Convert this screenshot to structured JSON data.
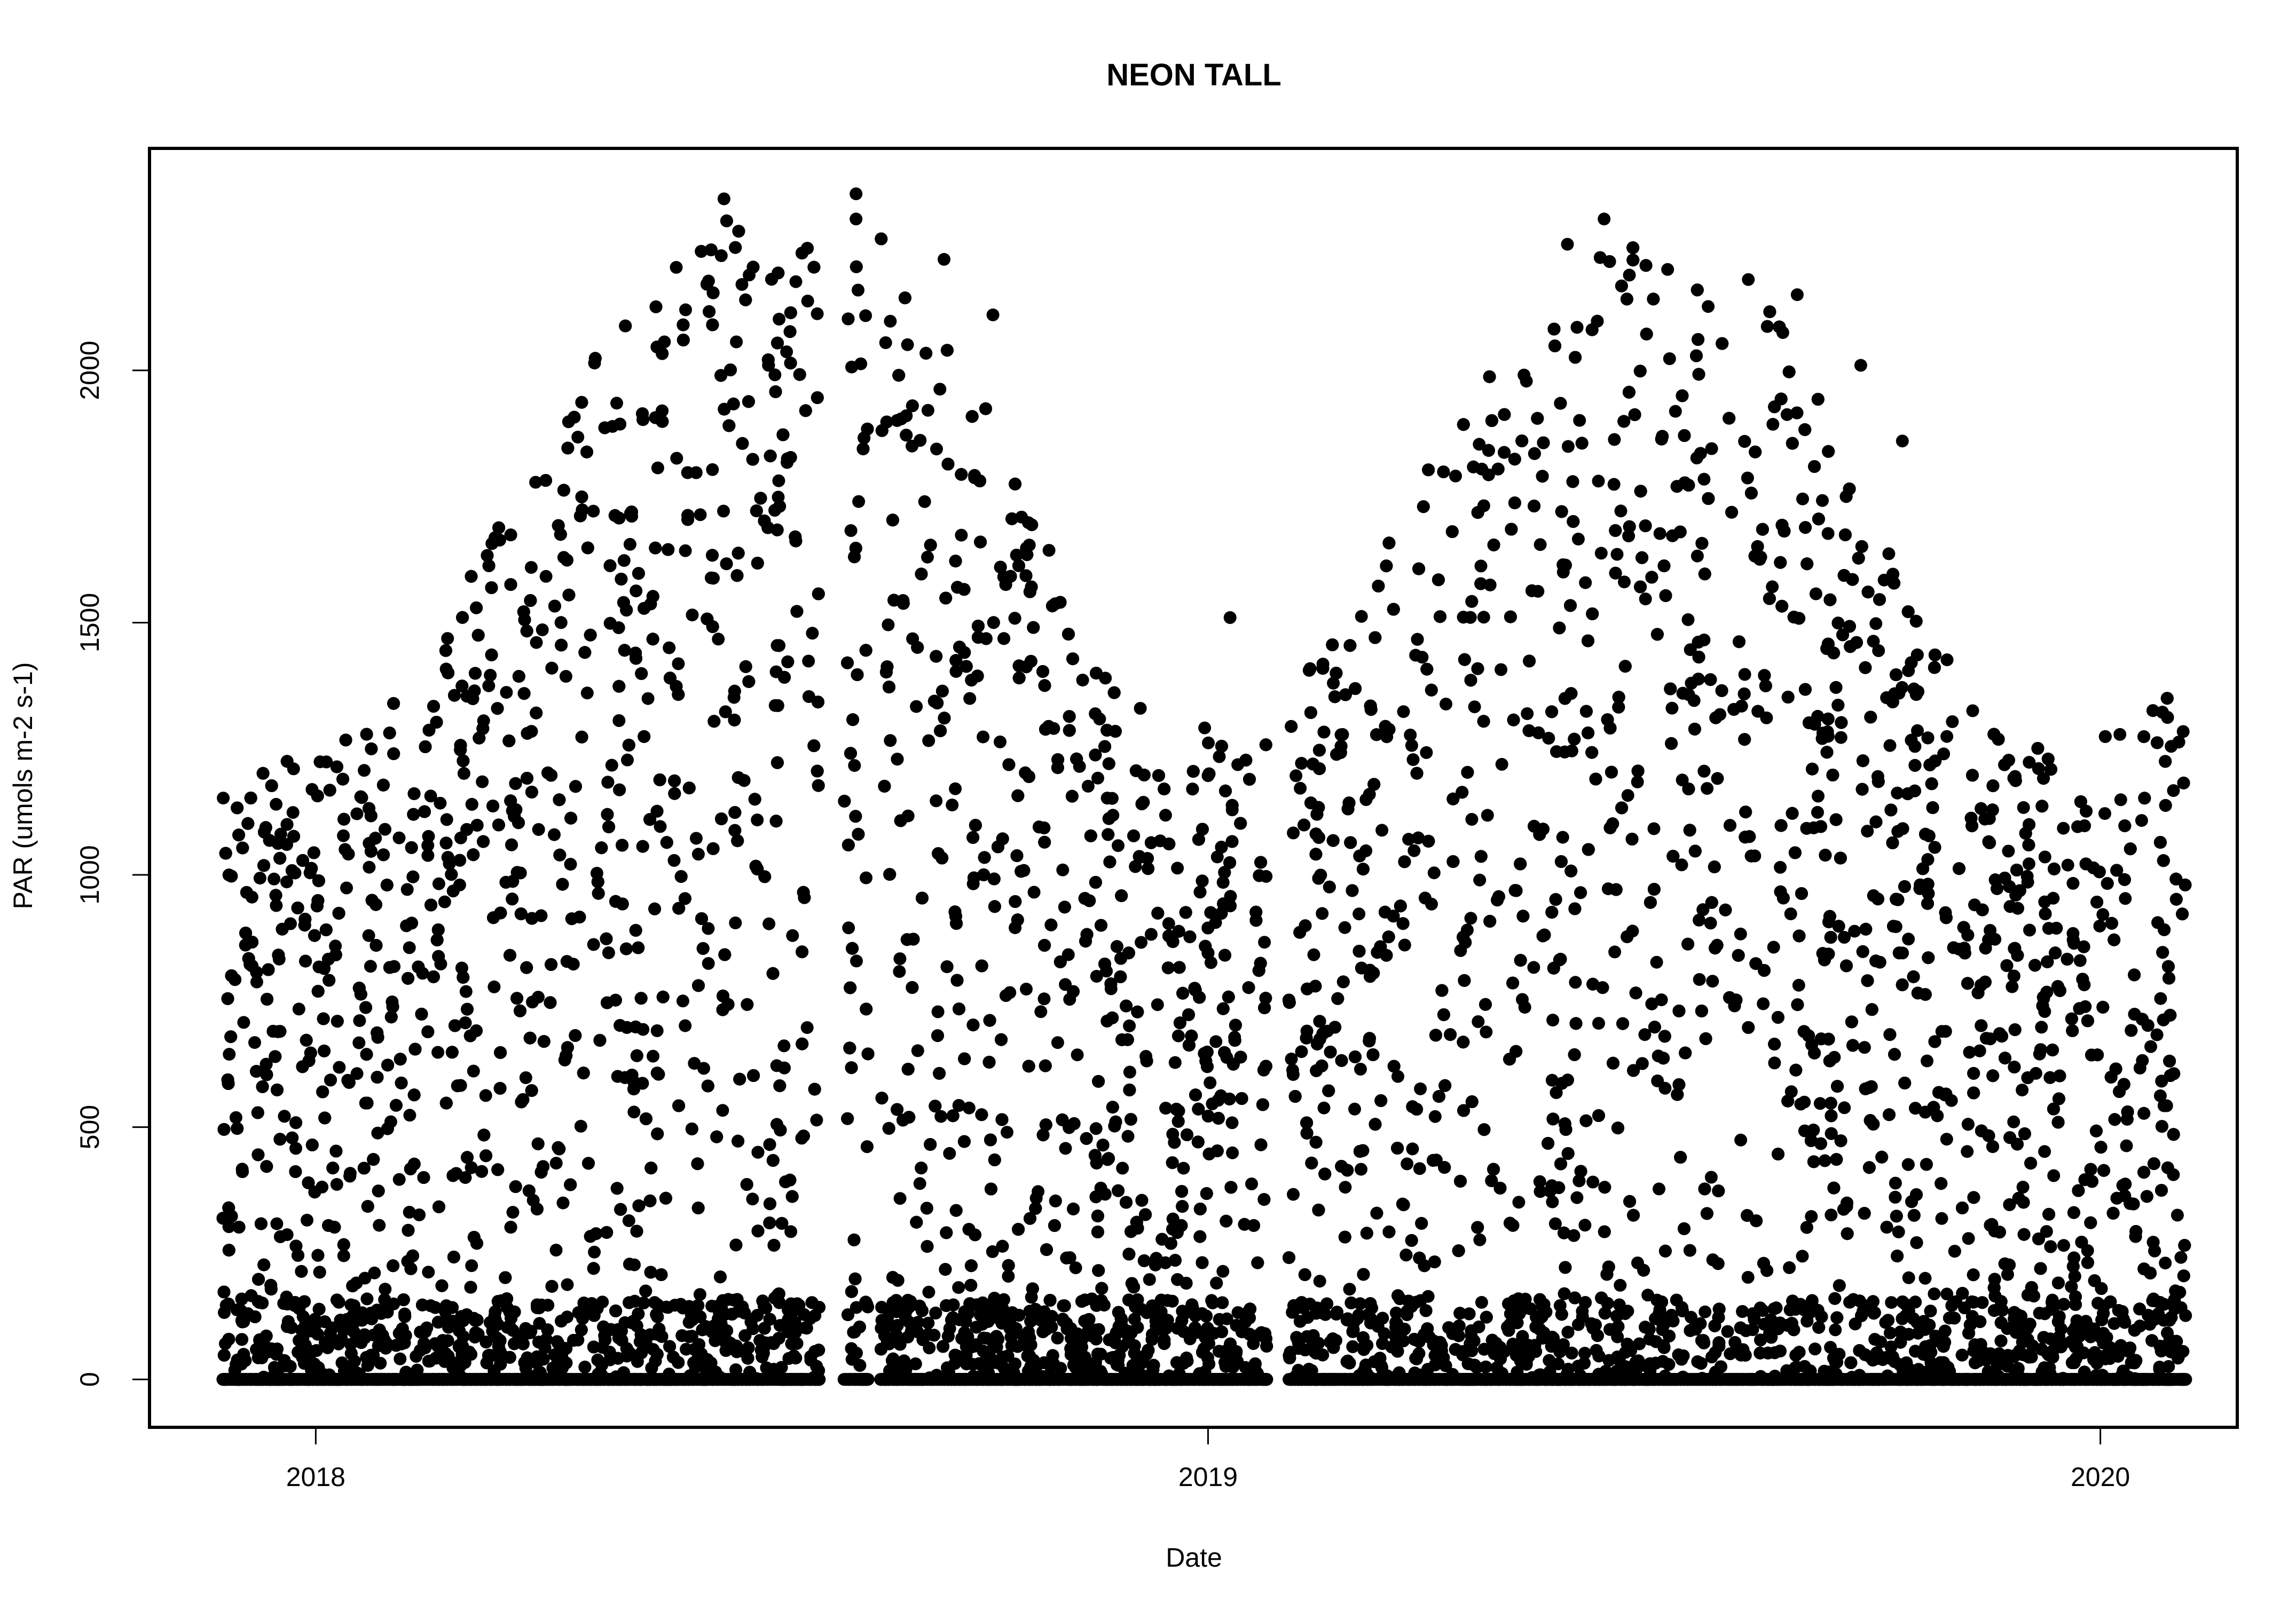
{
  "chart_data": {
    "type": "scatter",
    "title": "NEON TALL",
    "xlabel": "Date",
    "ylabel": "PAR (umols m-2 s-1)",
    "x_ticks": [
      "2018-01-01",
      "2019-01-01",
      "2020-01-01"
    ],
    "x_tick_labels": [
      "2018",
      "2019",
      "2020"
    ],
    "y_ticks": [
      0,
      500,
      1000,
      1500,
      2000
    ],
    "y_tick_labels": [
      "0",
      "500",
      "1000",
      "1500",
      "2000"
    ],
    "xlim": [
      "2017-10-25",
      "2020-02-26"
    ],
    "ylim": [
      -95,
      2440
    ],
    "grid": false,
    "legend": "none",
    "point_color": "#000000",
    "marker": "filled-circle",
    "date_range": [
      "2017-11-24",
      "2020-02-05"
    ],
    "data_gaps": [
      [
        "2018-07-26",
        "2018-08-05"
      ],
      [
        "2018-08-15",
        "2018-08-20"
      ],
      [
        "2019-01-25",
        "2019-02-03"
      ]
    ],
    "envelope_max": [
      {
        "x": "2017-11-24",
        "y": 1180
      },
      {
        "x": "2017-12-15",
        "y": 1240
      },
      {
        "x": "2018-01-15",
        "y": 1270
      },
      {
        "x": "2018-02-15",
        "y": 1420
      },
      {
        "x": "2018-03-15",
        "y": 1700
      },
      {
        "x": "2018-04-15",
        "y": 2010
      },
      {
        "x": "2018-05-15",
        "y": 2150
      },
      {
        "x": "2018-06-15",
        "y": 2280
      },
      {
        "x": "2018-06-25",
        "y": 2340
      },
      {
        "x": "2018-07-15",
        "y": 2250
      },
      {
        "x": "2018-08-10",
        "y": 2350
      },
      {
        "x": "2018-09-01",
        "y": 2200
      },
      {
        "x": "2018-10-01",
        "y": 1950
      },
      {
        "x": "2018-11-01",
        "y": 1600
      },
      {
        "x": "2018-11-25",
        "y": 1400
      },
      {
        "x": "2018-12-15",
        "y": 1270
      },
      {
        "x": "2019-01-15",
        "y": 1320
      },
      {
        "x": "2019-02-15",
        "y": 1430
      },
      {
        "x": "2019-03-15",
        "y": 1720
      },
      {
        "x": "2019-04-15",
        "y": 1960
      },
      {
        "x": "2019-05-15",
        "y": 2100
      },
      {
        "x": "2019-06-15",
        "y": 2290
      },
      {
        "x": "2019-07-15",
        "y": 2200
      },
      {
        "x": "2019-08-15",
        "y": 2160
      },
      {
        "x": "2019-09-15",
        "y": 1880
      },
      {
        "x": "2019-10-15",
        "y": 1540
      },
      {
        "x": "2019-11-15",
        "y": 1310
      },
      {
        "x": "2019-12-15",
        "y": 1250
      },
      {
        "x": "2020-01-15",
        "y": 1300
      },
      {
        "x": "2020-02-05",
        "y": 1410
      }
    ],
    "notable_points": [
      {
        "x": "2018-06-17",
        "y": 2340
      },
      {
        "x": "2018-08-10",
        "y": 2350
      },
      {
        "x": "2018-08-10",
        "y": 2300
      },
      {
        "x": "2018-09-15",
        "y": 2220
      },
      {
        "x": "2018-10-05",
        "y": 2110
      },
      {
        "x": "2018-11-20",
        "y": 1390
      },
      {
        "x": "2019-01-10",
        "y": 1510
      },
      {
        "x": "2019-05-28",
        "y": 2250
      },
      {
        "x": "2019-06-12",
        "y": 2300
      },
      {
        "x": "2019-07-08",
        "y": 2200
      },
      {
        "x": "2019-08-10",
        "y": 2180
      },
      {
        "x": "2019-08-30",
        "y": 2150
      },
      {
        "x": "2019-09-25",
        "y": 2010
      },
      {
        "x": "2019-10-12",
        "y": 1860
      }
    ]
  }
}
